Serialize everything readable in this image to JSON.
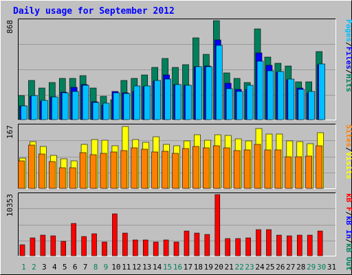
{
  "title": "Daily usage for September 2012",
  "colors": {
    "background": "#c0c0c0",
    "frame_light": "#ffffff",
    "frame_dark": "#000000",
    "title": "#0000ff",
    "hits": "#00805c",
    "files": "#0000ff",
    "pages": "#00c0ff",
    "visits": "#ffff00",
    "sites": "#ff8000",
    "kbin": "#0000ff",
    "kbout": "#00805c",
    "kbf": "#ff0000",
    "weekday": "#000000",
    "weekend": "#00805c",
    "separator": "#000000"
  },
  "chart_data": [
    {
      "type": "bar",
      "panel": "hits-files-pages",
      "y_max_label": "868",
      "ylim": [
        0,
        868
      ],
      "categories": [
        "1",
        "2",
        "3",
        "4",
        "5",
        "6",
        "7",
        "8",
        "9",
        "10",
        "11",
        "12",
        "13",
        "14",
        "15",
        "16",
        "17",
        "18",
        "19",
        "20",
        "21",
        "22",
        "23",
        "24",
        "25",
        "26",
        "27",
        "28",
        "29",
        "30",
        "31"
      ],
      "series": [
        {
          "name": "Hits",
          "values": [
            210,
            343,
            278,
            328,
            360,
            364,
            388,
            277,
            204,
            174,
            341,
            361,
            393,
            456,
            538,
            460,
            485,
            715,
            574,
            868,
            407,
            363,
            325,
            797,
            549,
            496,
            468,
            332,
            330,
            594,
            null
          ]
        },
        {
          "name": "Files",
          "values": [
            122,
            207,
            164,
            198,
            240,
            284,
            310,
            154,
            124,
            250,
            235,
            250,
            290,
            340,
            392,
            306,
            300,
            462,
            469,
            700,
            320,
            265,
            265,
            585,
            476,
            418,
            350,
            276,
            238,
            485,
            null
          ]
        },
        {
          "name": "Pages",
          "values": [
            118,
            208,
            166,
            198,
            234,
            246,
            300,
            150,
            146,
            233,
            232,
            293,
            293,
            341,
            354,
            308,
            300,
            462,
            462,
            650,
            274,
            250,
            303,
            512,
            428,
            420,
            354,
            266,
            250,
            490,
            null
          ]
        }
      ],
      "legend_labels": [
        "Pages",
        "Files",
        "Hits"
      ]
    },
    {
      "type": "bar",
      "panel": "visits-sites",
      "y_max_label": "167",
      "ylim": [
        0,
        167
      ],
      "categories": [
        "1",
        "2",
        "3",
        "4",
        "5",
        "6",
        "7",
        "8",
        "9",
        "10",
        "11",
        "12",
        "13",
        "14",
        "15",
        "16",
        "17",
        "18",
        "19",
        "20",
        "21",
        "22",
        "23",
        "24",
        "25",
        "26",
        "27",
        "28",
        "29",
        "30",
        "31"
      ],
      "series": [
        {
          "name": "Visits",
          "values": [
            80,
            125,
            112,
            89,
            79,
            73,
            118,
            130,
            128,
            114,
            166,
            131,
            123,
            137,
            118,
            113,
            127,
            143,
            129,
            143,
            142,
            133,
            127,
            160,
            145,
            145,
            127,
            125,
            120,
            148,
            null
          ]
        },
        {
          "name": "Sites",
          "values": [
            74,
            116,
            91,
            72,
            55,
            55,
            96,
            90,
            93,
            98,
            101,
            108,
            104,
            98,
            100,
            94,
            106,
            112,
            108,
            114,
            108,
            101,
            102,
            118,
            103,
            103,
            85,
            85,
            87,
            114,
            null
          ]
        }
      ],
      "legend_labels": [
        "Sites",
        "Visits"
      ]
    },
    {
      "type": "bar",
      "panel": "kbytes",
      "y_max_label": "10353",
      "ylim": [
        0,
        10353
      ],
      "categories": [
        "1",
        "2",
        "3",
        "4",
        "5",
        "6",
        "7",
        "8",
        "9",
        "10",
        "11",
        "12",
        "13",
        "14",
        "15",
        "16",
        "17",
        "18",
        "19",
        "20",
        "21",
        "22",
        "23",
        "24",
        "25",
        "26",
        "27",
        "28",
        "29",
        "30",
        "31"
      ],
      "series": [
        {
          "name": "kB F",
          "values": [
            1885,
            3034,
            3540,
            3359,
            2500,
            5453,
            3244,
            3746,
            2326,
            7052,
            3788,
            2643,
            2643,
            2326,
            2643,
            2326,
            4193,
            3788,
            3571,
            10353,
            2953,
            2953,
            3034,
            4464,
            4464,
            3540,
            3359,
            3540,
            3540,
            4193,
            null
          ]
        }
      ],
      "legend_labels": [
        "kB F",
        "kB In",
        "kB Out"
      ]
    }
  ],
  "legend": {
    "panel1": [
      {
        "text": "Pages",
        "color": "#00c0ff"
      },
      {
        "text": "/",
        "color": "#000000"
      },
      {
        "text": "Files",
        "color": "#0000ff"
      },
      {
        "text": "/",
        "color": "#000000"
      },
      {
        "text": "Hits",
        "color": "#00805c"
      }
    ],
    "panel2": [
      {
        "text": "Sites",
        "color": "#ff8000"
      },
      {
        "text": "/",
        "color": "#000000"
      },
      {
        "text": "Visits",
        "color": "#ffff00"
      }
    ],
    "panel3": [
      {
        "text": "kB F",
        "color": "#ff0000"
      },
      {
        "text": "/",
        "color": "#000000"
      },
      {
        "text": "kB In",
        "color": "#0000ff"
      },
      {
        "text": "/",
        "color": "#000000"
      },
      {
        "text": "kB Out",
        "color": "#00805c"
      }
    ]
  },
  "weekend_days": [
    1,
    2,
    8,
    9,
    15,
    16,
    22,
    23,
    29,
    30
  ]
}
